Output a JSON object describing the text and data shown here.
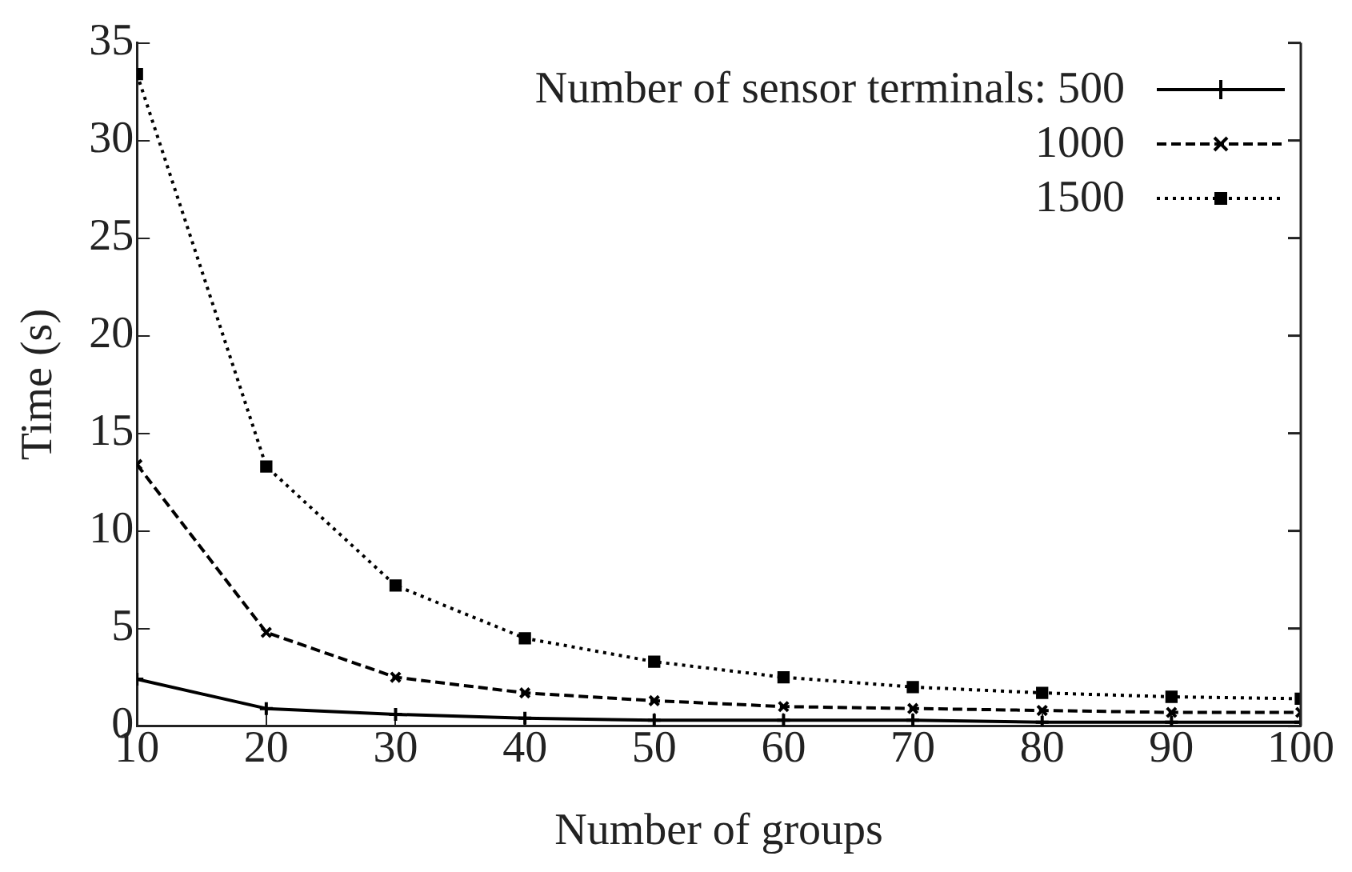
{
  "chart_data": {
    "type": "line",
    "xlabel": "Number of groups",
    "ylabel": "Time (s)",
    "legend_title": "Number of sensor terminals:",
    "legend": "top right",
    "grid": false,
    "x": [
      10,
      20,
      30,
      40,
      50,
      60,
      70,
      80,
      90,
      100
    ],
    "xlim": [
      10,
      100
    ],
    "xticks": [
      10,
      20,
      30,
      40,
      50,
      60,
      70,
      80,
      90,
      100
    ],
    "ylim": [
      0,
      35
    ],
    "yticks": [
      0,
      5,
      10,
      15,
      20,
      25,
      30,
      35
    ],
    "series": [
      {
        "name": "500",
        "color": "#000000",
        "line_style": "solid",
        "marker": "cross",
        "values": [
          2.4,
          0.9,
          0.6,
          0.4,
          0.3,
          0.3,
          0.3,
          0.2,
          0.2,
          0.2
        ]
      },
      {
        "name": "1000",
        "color": "#000000",
        "line_style": "dashed",
        "marker": "crossRot",
        "values": [
          13.4,
          4.8,
          2.5,
          1.7,
          1.3,
          1.0,
          0.9,
          0.8,
          0.7,
          0.7
        ]
      },
      {
        "name": "1500",
        "color": "#000000",
        "line_style": "dotted",
        "marker": "square",
        "values": [
          33.4,
          13.3,
          7.2,
          4.5,
          3.3,
          2.5,
          2.0,
          1.7,
          1.5,
          1.4
        ]
      }
    ]
  }
}
